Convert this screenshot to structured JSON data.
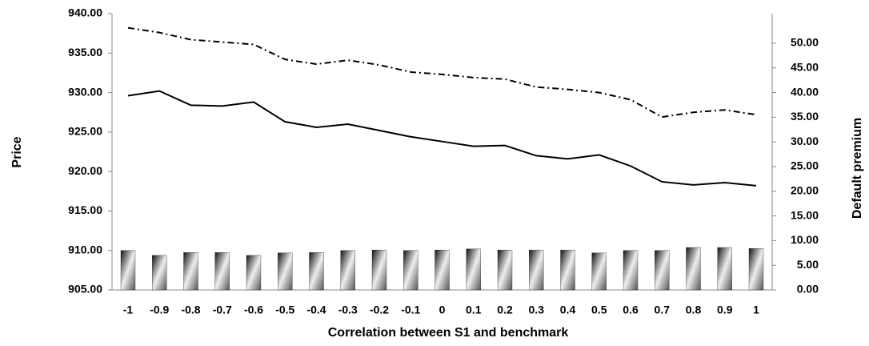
{
  "chart_data": {
    "type": "line",
    "x_label": "Correlation between S1 and benchmark",
    "y_label": "Price",
    "y2_label": "Default premium",
    "categories": [
      "-1",
      "-0.9",
      "-0.8",
      "-0.7",
      "-0.6",
      "-0.5",
      "-0.4",
      "-0.3",
      "-0.2",
      "-0.1",
      "0",
      "0.1",
      "0.2",
      "0.3",
      "0.4",
      "0.5",
      "0.6",
      "0.7",
      "0.8",
      "0.9",
      "1"
    ],
    "series": [
      {
        "type": "line",
        "dash": "solid",
        "color": "#000000",
        "values": [
          929.6,
          930.2,
          928.4,
          928.3,
          928.8,
          926.3,
          925.6,
          926.0,
          925.2,
          924.4,
          923.8,
          923.2,
          923.3,
          922.0,
          921.6,
          922.1,
          920.7,
          918.7,
          918.3,
          918.6,
          918.2
        ]
      },
      {
        "type": "line",
        "dash": "dashdot",
        "color": "#000000",
        "values": [
          938.2,
          937.6,
          936.7,
          936.4,
          936.1,
          934.2,
          933.6,
          934.1,
          933.5,
          932.6,
          932.3,
          931.9,
          931.7,
          930.7,
          930.4,
          930.0,
          929.1,
          926.9,
          927.5,
          927.8,
          927.2
        ]
      },
      {
        "type": "bar",
        "axis": "y2",
        "color": "#000000",
        "values": [
          8.0,
          7.0,
          7.6,
          7.6,
          7.0,
          7.5,
          7.6,
          8.0,
          8.1,
          8.0,
          8.1,
          8.3,
          8.1,
          8.1,
          8.1,
          7.5,
          8.0,
          8.0,
          8.6,
          8.6,
          8.4
        ]
      }
    ],
    "ylim": [
      905,
      940
    ],
    "yticks": [
      {
        "value": 905,
        "label": "905.00"
      },
      {
        "value": 910,
        "label": "910.00"
      },
      {
        "value": 915,
        "label": "915.00"
      },
      {
        "value": 920,
        "label": "920.00"
      },
      {
        "value": 925,
        "label": "925.00"
      },
      {
        "value": 930,
        "label": "930.00"
      },
      {
        "value": 935,
        "label": "935.00"
      },
      {
        "value": 940,
        "label": "940.00"
      }
    ],
    "y2lim": [
      0,
      56
    ],
    "y2ticks": [
      {
        "value": 0,
        "label": "0.00"
      },
      {
        "value": 5,
        "label": "5.00"
      },
      {
        "value": 10,
        "label": "10.00"
      },
      {
        "value": 15,
        "label": "15.00"
      },
      {
        "value": 20,
        "label": "20.00"
      },
      {
        "value": 25,
        "label": "25.00"
      },
      {
        "value": 30,
        "label": "30.00"
      },
      {
        "value": 35,
        "label": "35.00"
      },
      {
        "value": 40,
        "label": "40.00"
      },
      {
        "value": 45,
        "label": "45.00"
      },
      {
        "value": 50,
        "label": "50.00"
      }
    ],
    "grid": false
  }
}
